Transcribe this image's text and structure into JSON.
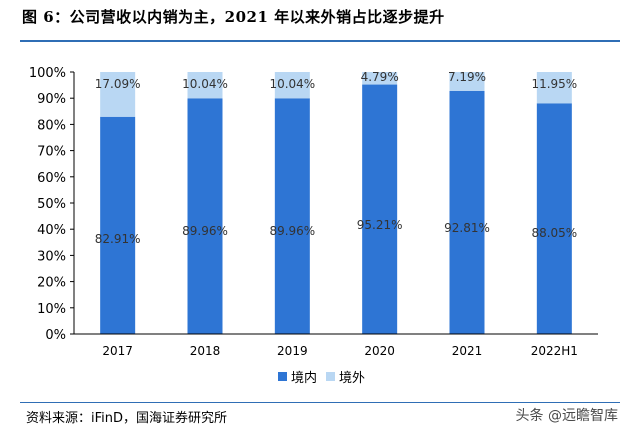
{
  "figure": {
    "title": "图 6：公司营收以内销为主，2021 年以来外销占比逐步提升",
    "source": "资料来源：iFinD，国海证券研究所",
    "watermark": "头条 @远瞻智库"
  },
  "chart_data": {
    "type": "bar",
    "stacked": true,
    "categories": [
      "2017",
      "2018",
      "2019",
      "2020",
      "2021",
      "2022H1"
    ],
    "series": [
      {
        "name": "境内",
        "values": [
          82.91,
          89.96,
          89.96,
          95.21,
          92.81,
          88.05
        ],
        "color": "#2e75d4",
        "labels": [
          "82.91%",
          "89.96%",
          "89.96%",
          "95.21%",
          "92.81%",
          "88.05%"
        ]
      },
      {
        "name": "境外",
        "values": [
          17.09,
          10.04,
          10.04,
          4.79,
          7.19,
          11.95
        ],
        "color": "#b9d7f3",
        "labels": [
          "17.09%",
          "10.04%",
          "10.04%",
          "4.79%",
          "7.19%",
          "11.95%"
        ]
      }
    ],
    "ylim": [
      0,
      100
    ],
    "yticks": [
      "0%",
      "10%",
      "20%",
      "30%",
      "40%",
      "50%",
      "60%",
      "70%",
      "80%",
      "90%",
      "100%"
    ],
    "grid": false,
    "legend": "bottom"
  }
}
